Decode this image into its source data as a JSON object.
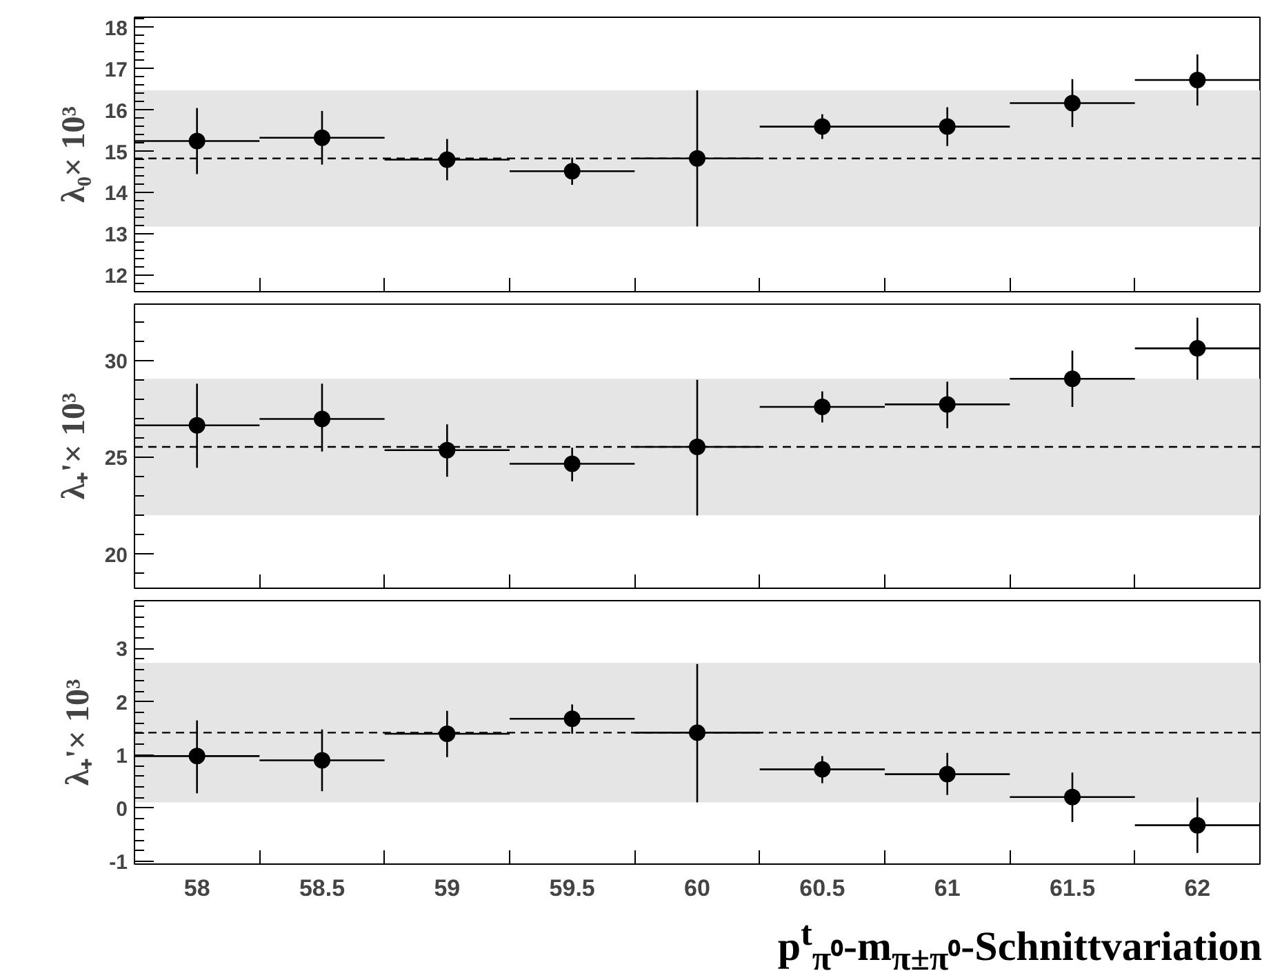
{
  "chart_data": [
    {
      "type": "scatter",
      "ylabel": "λ₀× 10³",
      "marker": "circle",
      "grid": false,
      "tick_labels": "y",
      "x": [
        58,
        58.5,
        59,
        59.5,
        60,
        60.5,
        61,
        61.5,
        62
      ],
      "series": [
        {
          "color": "#000000",
          "values": [
            15.25,
            15.33,
            14.8,
            14.52,
            14.83,
            15.6,
            15.6,
            16.17,
            16.73
          ],
          "errors": [
            0.8,
            0.65,
            0.5,
            0.33,
            1.65,
            0.3,
            0.47,
            0.58,
            0.62
          ],
          "xerrors": [
            0.25,
            0.25,
            0.25,
            0.25,
            0.25,
            0.25,
            0.25,
            0.25,
            0.25
          ]
        }
      ],
      "ref_lines": [
        {
          "axis": "y",
          "value": 14.83,
          "color": "#000000",
          "line_style": "dashed"
        }
      ],
      "bands": [
        {
          "axis": "y",
          "from": 13.18,
          "to": 16.48,
          "color": "#e5e5e5"
        }
      ],
      "xlim": [
        57.75,
        62.25
      ],
      "xticks": [
        {
          "value": 57.75,
          "label": null
        },
        58,
        {
          "value": 58.25,
          "label": null
        },
        58.5,
        {
          "value": 58.75,
          "label": null
        },
        59,
        {
          "value": 59.25,
          "label": null
        },
        59.5,
        {
          "value": 59.75,
          "label": null
        },
        60,
        {
          "value": 60.25,
          "label": null
        },
        60.5,
        {
          "value": 60.75,
          "label": null
        },
        61,
        {
          "value": 61.25,
          "label": null
        },
        61.5,
        {
          "value": 61.75,
          "label": null
        },
        62,
        {
          "value": 62.25,
          "label": null
        }
      ],
      "ylim": [
        11.6,
        18.25
      ],
      "yticks": [
        12,
        13,
        14,
        15,
        16,
        17,
        18
      ]
    },
    {
      "type": "scatter",
      "ylabel": "λ₊'× 10³",
      "marker": "circle",
      "grid": false,
      "tick_labels": "y",
      "x": [
        58,
        58.5,
        59,
        59.5,
        60,
        60.5,
        61,
        61.5,
        62
      ],
      "series": [
        {
          "color": "#000000",
          "values": [
            26.65,
            26.98,
            25.37,
            24.67,
            25.54,
            27.6,
            27.73,
            29.05,
            30.62
          ],
          "errors": [
            [
              24.46,
              28.8
            ],
            [
              25.3,
              28.8
            ],
            [
              24.0,
              26.7
            ],
            [
              23.76,
              25.5
            ],
            [
              22.0,
              29.0
            ],
            [
              26.8,
              28.4
            ],
            [
              26.5,
              28.9
            ],
            [
              27.6,
              30.5
            ],
            [
              29.0,
              32.2
            ]
          ],
          "xerrors": [
            0.25,
            0.25,
            0.25,
            0.25,
            0.25,
            0.25,
            0.25,
            0.25,
            0.25
          ]
        }
      ],
      "ref_lines": [
        {
          "axis": "y",
          "value": 25.54,
          "color": "#000000",
          "line_style": "dashed"
        }
      ],
      "bands": [
        {
          "axis": "y",
          "from": 22.02,
          "to": 29.05,
          "color": "#e5e5e5"
        }
      ],
      "xlim": [
        57.75,
        62.25
      ],
      "xticks": [
        {
          "value": 57.75,
          "label": null
        },
        58,
        {
          "value": 58.25,
          "label": null
        },
        58.5,
        {
          "value": 58.75,
          "label": null
        },
        59,
        {
          "value": 59.25,
          "label": null
        },
        59.5,
        {
          "value": 59.75,
          "label": null
        },
        60,
        {
          "value": 60.25,
          "label": null
        },
        60.5,
        {
          "value": 60.75,
          "label": null
        },
        61,
        {
          "value": 61.25,
          "label": null
        },
        61.5,
        {
          "value": 61.75,
          "label": null
        },
        62,
        {
          "value": 62.25,
          "label": null
        }
      ],
      "ylim": [
        18.25,
        32.9
      ],
      "yticks": [
        20,
        25,
        30
      ]
    },
    {
      "type": "scatter",
      "ylabel": "λ₊'× 10³",
      "xlabel": "p$^{t}$$_{π⁰}$-m$_{π±π⁰}$-Schnittvariation",
      "marker": "circle",
      "grid": false,
      "x": [
        58,
        58.5,
        59,
        59.5,
        60,
        60.5,
        61,
        61.5,
        62
      ],
      "series": [
        {
          "color": "#000000",
          "values": [
            0.98,
            0.9,
            1.4,
            1.68,
            1.42,
            0.73,
            0.64,
            0.21,
            -0.32
          ],
          "errors": [
            [
              0.28,
              1.65
            ],
            [
              0.32,
              1.48
            ],
            [
              0.96,
              1.83
            ],
            [
              1.4,
              1.95
            ],
            [
              0.11,
              2.71
            ],
            [
              0.47,
              0.98
            ],
            [
              0.25,
              1.04
            ],
            [
              -0.26,
              0.67
            ],
            [
              -0.84,
              0.2
            ]
          ],
          "xerrors": [
            0.25,
            0.25,
            0.25,
            0.25,
            0.25,
            0.25,
            0.25,
            0.25,
            0.25
          ]
        }
      ],
      "ref_lines": [
        {
          "axis": "y",
          "value": 1.42,
          "color": "#000000",
          "line_style": "dashed"
        }
      ],
      "bands": [
        {
          "axis": "y",
          "from": 0.11,
          "to": 2.73,
          "color": "#e5e5e5"
        }
      ],
      "xlim": [
        57.75,
        62.25
      ],
      "xticks": [
        {
          "value": 57.75,
          "label": null
        },
        58,
        {
          "value": 58.25,
          "label": null
        },
        58.5,
        {
          "value": 58.75,
          "label": null
        },
        59,
        {
          "value": 59.25,
          "label": null
        },
        59.5,
        {
          "value": 59.75,
          "label": null
        },
        60,
        {
          "value": 60.25,
          "label": null
        },
        60.5,
        {
          "value": 60.75,
          "label": null
        },
        61,
        {
          "value": 61.25,
          "label": null
        },
        61.5,
        {
          "value": 61.75,
          "label": null
        },
        62,
        {
          "value": 62.25,
          "label": null
        }
      ],
      "ylim": [
        -1.05,
        3.9
      ],
      "yticks": [
        -1,
        0,
        1,
        2,
        3
      ]
    }
  ]
}
